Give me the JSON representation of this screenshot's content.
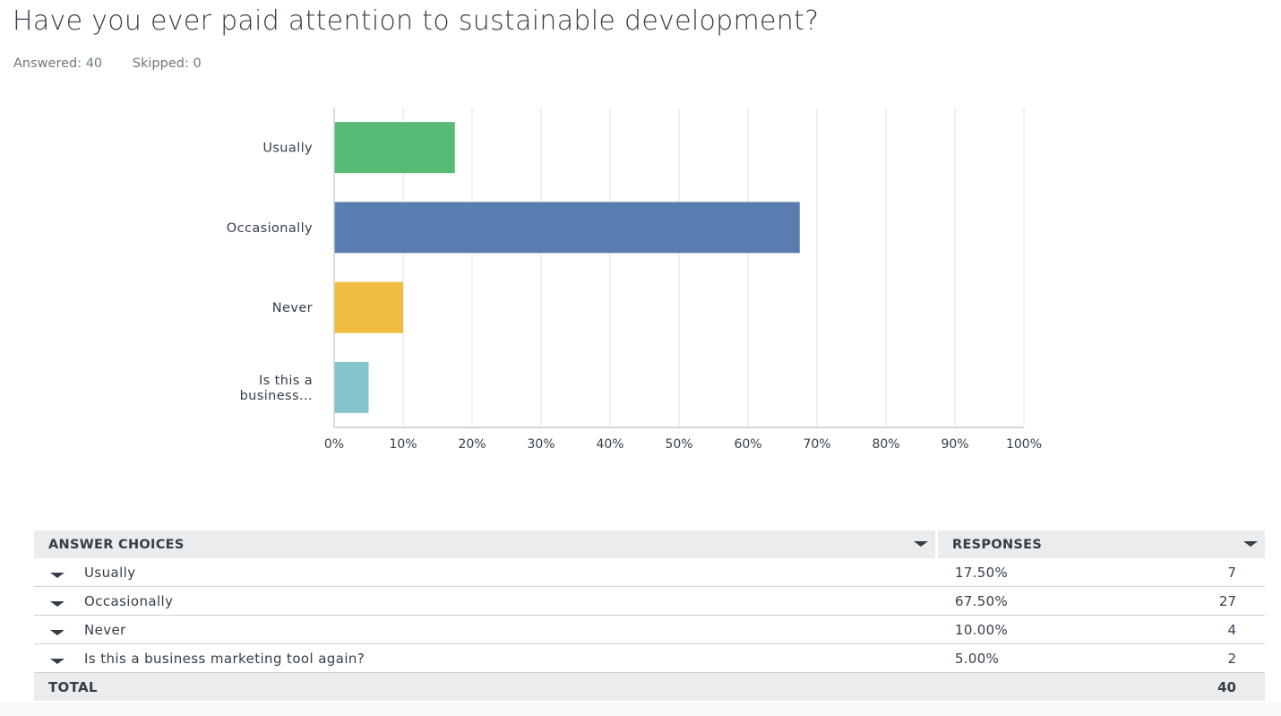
{
  "question": {
    "title": "Have you ever paid attention to sustainable development?",
    "answered": "Answered: 40",
    "skipped": "Skipped: 0"
  },
  "chart_data": {
    "type": "bar",
    "orientation": "horizontal",
    "title": "Have you ever paid attention to sustainable development?",
    "categories": [
      "Usually",
      "Occasionally",
      "Never",
      "Is this a business..."
    ],
    "category_label_lines": [
      [
        "Usually"
      ],
      [
        "Occasionally"
      ],
      [
        "Never"
      ],
      [
        "Is this a",
        "business..."
      ]
    ],
    "values": [
      17.5,
      67.5,
      10.0,
      5.0
    ],
    "colors": [
      "#57bb77",
      "#5a7db1",
      "#f0bd42",
      "#83c5ca"
    ],
    "xlabel": "",
    "ylabel": "",
    "xlim": [
      0,
      100
    ],
    "xticks": [
      0,
      10,
      20,
      30,
      40,
      50,
      60,
      70,
      80,
      90,
      100
    ],
    "xtick_labels": [
      "0%",
      "10%",
      "20%",
      "30%",
      "40%",
      "50%",
      "60%",
      "70%",
      "80%",
      "90%",
      "100%"
    ],
    "grid": true,
    "legend": "none"
  },
  "table": {
    "header": {
      "choices_label": "ANSWER CHOICES",
      "responses_label": "RESPONSES"
    },
    "rows": [
      {
        "choice": "Usually",
        "percent": "17.50%",
        "count": "7"
      },
      {
        "choice": "Occasionally",
        "percent": "67.50%",
        "count": "27"
      },
      {
        "choice": "Never",
        "percent": "10.00%",
        "count": "4"
      },
      {
        "choice": "Is this a business marketing tool again?",
        "percent": "5.00%",
        "count": "2"
      }
    ],
    "total": {
      "label": "TOTAL",
      "count": "40"
    }
  }
}
